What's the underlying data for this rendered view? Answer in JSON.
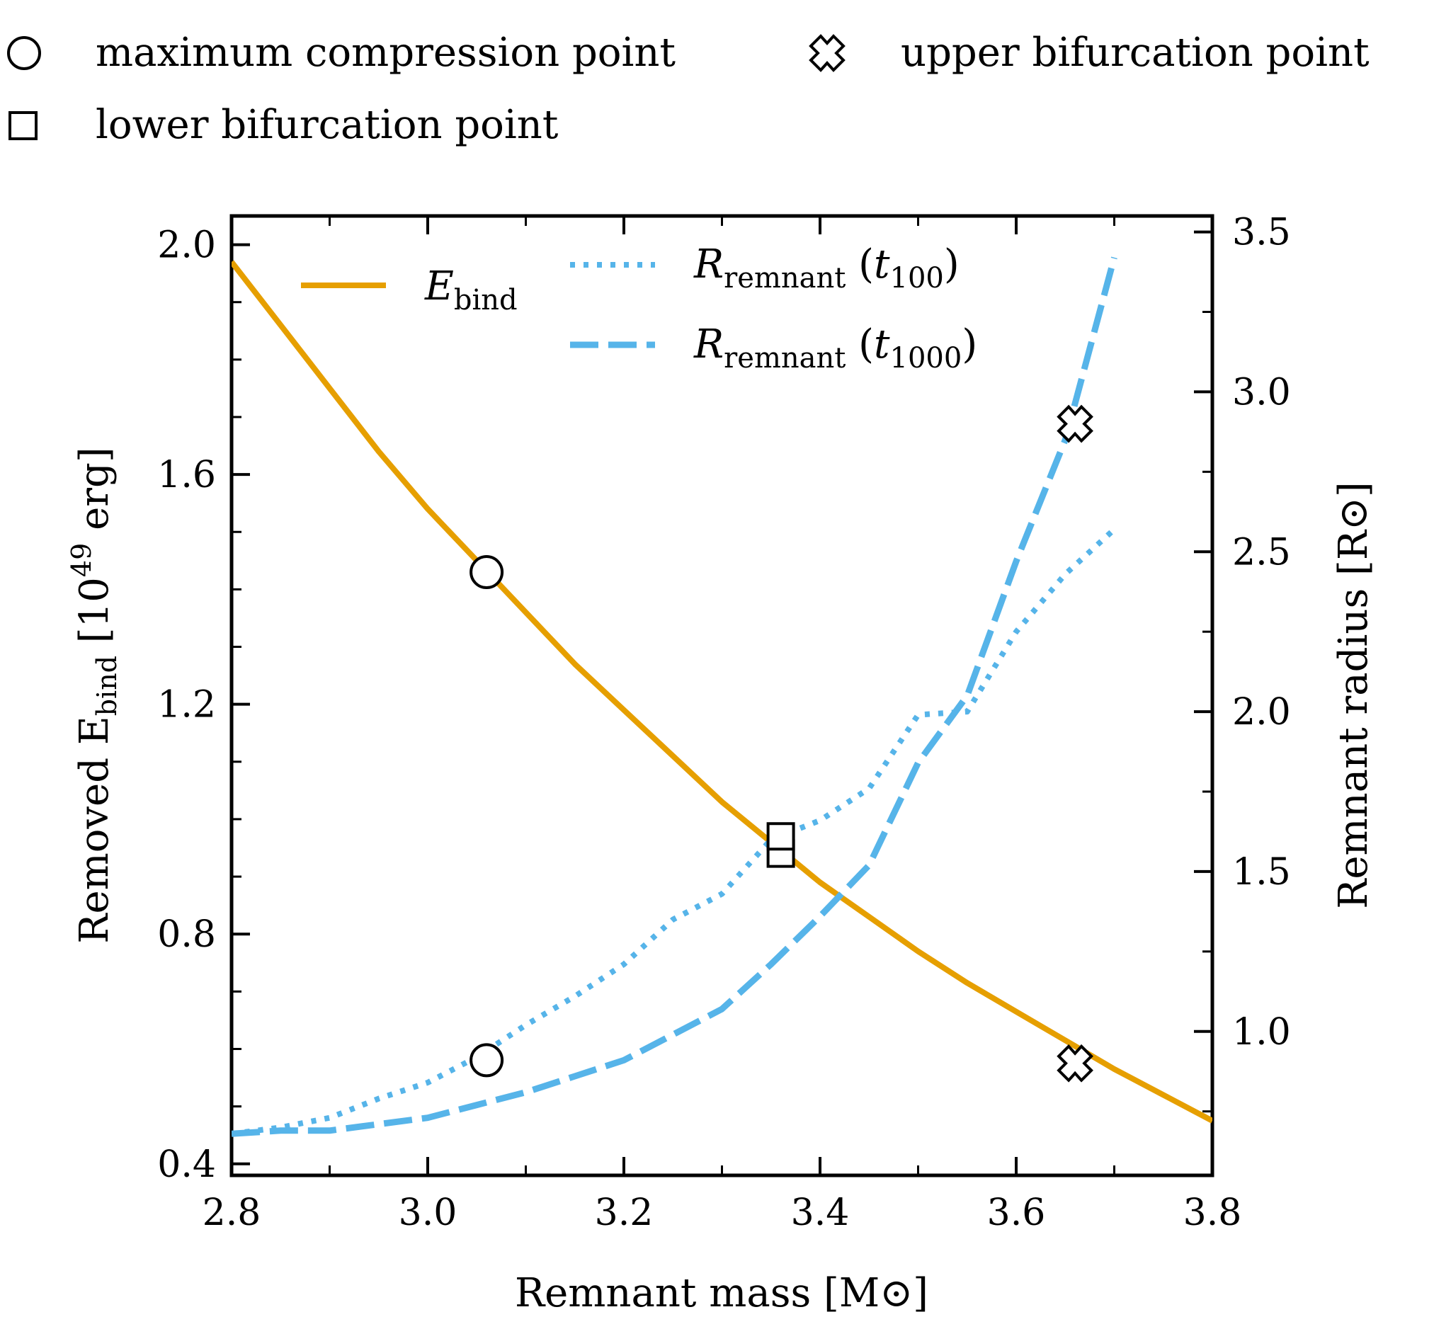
{
  "chart_data": {
    "type": "line",
    "xlabel_text": "Remnant mass",
    "xlabel_unit": "[M⊙]",
    "ylabel_left_text": "Removed E",
    "ylabel_left_sub": "bind",
    "ylabel_left_unit_open": "[10",
    "ylabel_left_unit_exp": "49",
    "ylabel_left_unit_close": "erg]",
    "ylabel_right_text": "Remnant radius",
    "ylabel_right_unit": "[R⊙]",
    "xlim": [
      2.8,
      3.8
    ],
    "ylim_left": [
      0.38,
      2.05
    ],
    "ylim_right": [
      0.55,
      3.55
    ],
    "x_ticks": [
      2.8,
      3.0,
      3.2,
      3.4,
      3.6,
      3.8
    ],
    "x_tick_labels": [
      "2.8",
      "3.0",
      "3.2",
      "3.4",
      "3.6",
      "3.8"
    ],
    "y_left_ticks": [
      0.4,
      0.8,
      1.2,
      1.6,
      2.0
    ],
    "y_left_tick_labels": [
      "0.4",
      "0.8",
      "1.2",
      "1.6",
      "2.0"
    ],
    "y_right_ticks": [
      1.0,
      1.5,
      2.0,
      2.5,
      3.0,
      3.5
    ],
    "y_right_tick_labels": [
      "1.0",
      "1.5",
      "2.0",
      "2.5",
      "3.0",
      "3.5"
    ],
    "series": [
      {
        "name_main": "E",
        "name_sub": "bind",
        "axis": "left",
        "color": "#E69F00",
        "style": "solid",
        "x": [
          2.8,
          2.85,
          2.9,
          2.95,
          3.0,
          3.05,
          3.1,
          3.15,
          3.2,
          3.25,
          3.3,
          3.35,
          3.4,
          3.45,
          3.5,
          3.55,
          3.6,
          3.65,
          3.7,
          3.75,
          3.8
        ],
        "y": [
          1.97,
          1.86,
          1.75,
          1.64,
          1.54,
          1.45,
          1.36,
          1.27,
          1.19,
          1.11,
          1.03,
          0.96,
          0.89,
          0.83,
          0.77,
          0.715,
          0.665,
          0.615,
          0.565,
          0.52,
          0.475
        ]
      },
      {
        "name_main": "R",
        "name_sub": "remnant",
        "name_time_base": "t",
        "name_time_sub": "100",
        "axis": "right",
        "color": "#56B4E9",
        "style": "dotted",
        "x": [
          2.8,
          2.85,
          2.9,
          2.95,
          3.0,
          3.05,
          3.1,
          3.15,
          3.2,
          3.25,
          3.3,
          3.35,
          3.4,
          3.45,
          3.5,
          3.55,
          3.6,
          3.65,
          3.7
        ],
        "y": [
          0.68,
          0.7,
          0.73,
          0.79,
          0.84,
          0.92,
          1.02,
          1.11,
          1.21,
          1.35,
          1.43,
          1.6,
          1.66,
          1.76,
          1.99,
          2.0,
          2.25,
          2.43,
          2.57
        ]
      },
      {
        "name_main": "R",
        "name_sub": "remnant",
        "name_time_base": "t",
        "name_time_sub": "1000",
        "axis": "right",
        "color": "#56B4E9",
        "style": "dashed",
        "x": [
          2.8,
          2.85,
          2.9,
          2.95,
          3.0,
          3.05,
          3.1,
          3.15,
          3.2,
          3.25,
          3.3,
          3.35,
          3.4,
          3.45,
          3.5,
          3.55,
          3.6,
          3.65,
          3.7
        ],
        "y": [
          0.68,
          0.69,
          0.69,
          0.71,
          0.73,
          0.77,
          0.81,
          0.86,
          0.91,
          0.99,
          1.07,
          1.21,
          1.36,
          1.52,
          1.84,
          2.05,
          2.47,
          2.85,
          3.42
        ]
      }
    ],
    "markers": [
      {
        "label": "maximum compression point",
        "shape": "circle",
        "points": [
          {
            "x": 3.06,
            "y": 1.43,
            "axis": "left"
          },
          {
            "x": 3.06,
            "y": 0.91,
            "axis": "right"
          }
        ]
      },
      {
        "label": "lower bifurcation point",
        "shape": "square",
        "points": [
          {
            "x": 3.36,
            "y": 0.94,
            "axis": "left"
          },
          {
            "x": 3.36,
            "y": 1.61,
            "axis": "right"
          }
        ]
      },
      {
        "label": "upper bifurcation point",
        "shape": "cross",
        "points": [
          {
            "x": 3.66,
            "y": 0.575,
            "axis": "left"
          },
          {
            "x": 3.66,
            "y": 2.9,
            "axis": "right"
          }
        ]
      }
    ],
    "legend_placement": "top-inside and above plot",
    "grid": false
  }
}
